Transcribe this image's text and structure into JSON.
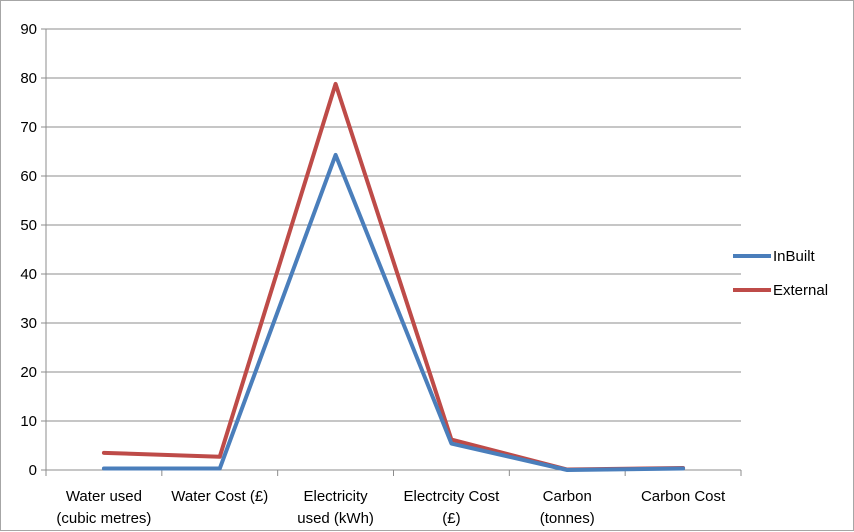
{
  "chart_data": {
    "type": "line",
    "categories": [
      [
        "Water used",
        "(cubic metres)"
      ],
      [
        "Water Cost (£)"
      ],
      [
        "Electricity",
        "used (kWh)"
      ],
      [
        "Electrcity Cost",
        "(£)"
      ],
      [
        "Carbon",
        "(tonnes)"
      ],
      [
        "Carbon Cost"
      ]
    ],
    "series": [
      {
        "name": "InBuilt",
        "color": "#4a7ebb",
        "values": [
          0.3,
          0.3,
          64.3,
          5.4,
          0.0,
          0.3
        ]
      },
      {
        "name": "External",
        "color": "#be4b48",
        "values": [
          3.5,
          2.7,
          78.8,
          6.2,
          0.1,
          0.4
        ]
      }
    ],
    "ylim": [
      0,
      90
    ],
    "yticks": [
      0,
      10,
      20,
      30,
      40,
      50,
      60,
      70,
      80,
      90
    ],
    "grid": true,
    "legend_position": "right",
    "title": "",
    "xlabel": "",
    "ylabel": ""
  }
}
